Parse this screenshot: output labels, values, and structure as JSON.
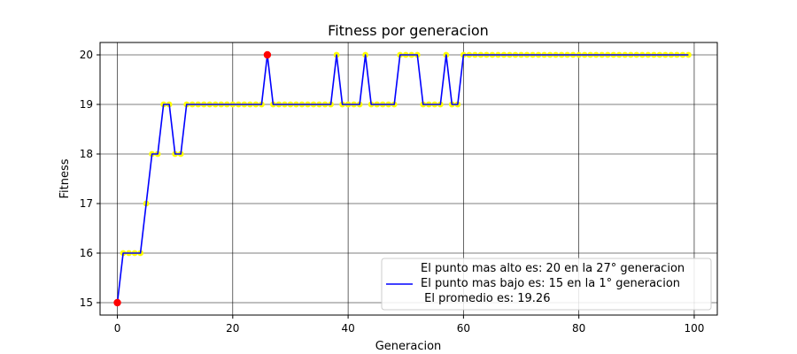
{
  "chart_data": {
    "type": "line",
    "title": "Fitness por generacion",
    "xlabel": "Generacion",
    "ylabel": "Fitness",
    "xlim": [
      -3,
      104
    ],
    "ylim": [
      14.75,
      20.25
    ],
    "xticks": [
      0,
      20,
      40,
      60,
      80,
      100
    ],
    "yticks": [
      15,
      16,
      17,
      18,
      19,
      20
    ],
    "grid": true,
    "legend_position": "bottom-right",
    "legend": [
      "El punto mas alto es: 20 en la 27° generacion",
      "El punto mas bajo es: 15 en la 1° generacion",
      " El promedio es: 19.26"
    ],
    "series": [
      {
        "name": "El punto mas bajo es: 15 en la 1° generacion",
        "color": "#0000ff",
        "marker_color": "#ffff00",
        "x": [
          0,
          1,
          2,
          3,
          4,
          5,
          6,
          7,
          8,
          9,
          10,
          11,
          12,
          13,
          14,
          15,
          16,
          17,
          18,
          19,
          20,
          21,
          22,
          23,
          24,
          25,
          26,
          27,
          28,
          29,
          30,
          31,
          32,
          33,
          34,
          35,
          36,
          37,
          38,
          39,
          40,
          41,
          42,
          43,
          44,
          45,
          46,
          47,
          48,
          49,
          50,
          51,
          52,
          53,
          54,
          55,
          56,
          57,
          58,
          59,
          60,
          61,
          62,
          63,
          64,
          65,
          66,
          67,
          68,
          69,
          70,
          71,
          72,
          73,
          74,
          75,
          76,
          77,
          78,
          79,
          80,
          81,
          82,
          83,
          84,
          85,
          86,
          87,
          88,
          89,
          90,
          91,
          92,
          93,
          94,
          95,
          96,
          97,
          98,
          99
        ],
        "y": [
          15,
          16,
          16,
          16,
          16,
          17,
          18,
          18,
          19,
          19,
          18,
          18,
          19,
          19,
          19,
          19,
          19,
          19,
          19,
          19,
          19,
          19,
          19,
          19,
          19,
          19,
          20,
          19,
          19,
          19,
          19,
          19,
          19,
          19,
          19,
          19,
          19,
          19,
          20,
          19,
          19,
          19,
          19,
          20,
          19,
          19,
          19,
          19,
          19,
          20,
          20,
          20,
          20,
          19,
          19,
          19,
          19,
          20,
          19,
          19,
          20,
          20,
          20,
          20,
          20,
          20,
          20,
          20,
          20,
          20,
          20,
          20,
          20,
          20,
          20,
          20,
          20,
          20,
          20,
          20,
          20,
          20,
          20,
          20,
          20,
          20,
          20,
          20,
          20,
          20,
          20,
          20,
          20,
          20,
          20,
          20,
          20,
          20,
          20,
          20
        ]
      }
    ],
    "highlight_points": [
      {
        "x": 0,
        "y": 15,
        "color": "#ff0000"
      },
      {
        "x": 26,
        "y": 20,
        "color": "#ff0000"
      }
    ]
  }
}
